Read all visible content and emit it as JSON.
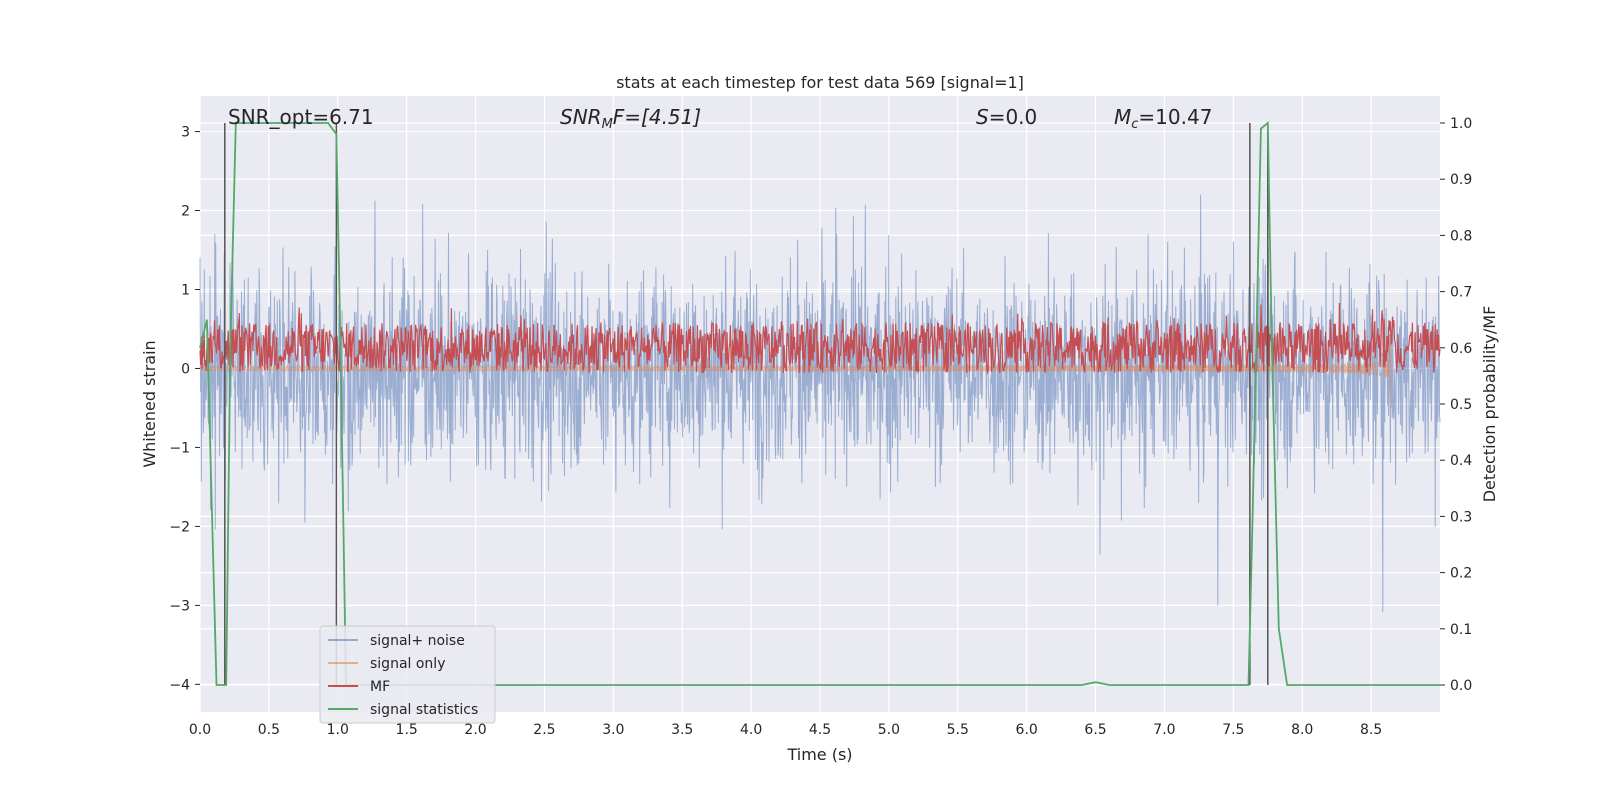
{
  "chart_data": {
    "type": "line",
    "title": "stats at each timestep for test data 569 [signal=1]",
    "xlabel": "Time (s)",
    "ylabel": "Whitened strain",
    "y2label": "Detection probability/MF",
    "xlim": [
      0.0,
      9.0
    ],
    "ylim": [
      -4.35,
      3.45
    ],
    "y2lim": [
      -0.048,
      1.048
    ],
    "xticks": [
      "0.0",
      "0.5",
      "1.0",
      "1.5",
      "2.0",
      "2.5",
      "3.0",
      "3.5",
      "4.0",
      "4.5",
      "5.0",
      "5.5",
      "6.0",
      "6.5",
      "7.0",
      "7.5",
      "8.0",
      "8.5"
    ],
    "xtick_values": [
      0.0,
      0.5,
      1.0,
      1.5,
      2.0,
      2.5,
      3.0,
      3.5,
      4.0,
      4.5,
      5.0,
      5.5,
      6.0,
      6.5,
      7.0,
      7.5,
      8.0,
      8.5
    ],
    "yticks": [
      "−4",
      "−3",
      "−2",
      "−1",
      "0",
      "1",
      "2",
      "3"
    ],
    "ytick_values": [
      -4,
      -3,
      -2,
      -1,
      0,
      1,
      2,
      3
    ],
    "y2ticks": [
      "0.0",
      "0.1",
      "0.2",
      "0.3",
      "0.4",
      "0.5",
      "0.6",
      "0.7",
      "0.8",
      "0.9",
      "1.0"
    ],
    "y2tick_values": [
      0.0,
      0.1,
      0.2,
      0.3,
      0.4,
      0.5,
      0.6,
      0.7,
      0.8,
      0.9,
      1.0
    ],
    "annotations": {
      "snr_opt": "SNR_opt=6.71",
      "snr_mf_prefix": "SNR",
      "snr_mf_sub": "M",
      "snr_mf_suffix": "F=[4.51]",
      "s_var": "S",
      "s_val": "=0.0",
      "mc_var": "M",
      "mc_sub": "c",
      "mc_val": "=10.47"
    },
    "series": [
      {
        "name": "signal+ noise",
        "color": "#4c72b0",
        "description": "whitened noisy strain, amplitude roughly -3 to 3 across full duration"
      },
      {
        "name": "signal only",
        "color": "#dd8452",
        "description": "chirp signal growing in amplitude until merger at ~8.65 s"
      },
      {
        "name": "MF",
        "color": "#c44e52",
        "description": "matched-filter output on right axis, mostly 0.55-0.67, peak ~0.68 near 8.6 s"
      },
      {
        "name": "signal statistics",
        "color": "#55a868",
        "x": [
          0.0,
          0.05,
          0.12,
          0.19,
          0.22,
          0.26,
          0.3,
          0.5,
          0.7,
          0.93,
          0.99,
          1.02,
          1.06,
          1.1,
          1.4,
          2.0,
          3.0,
          4.0,
          5.0,
          6.0,
          6.4,
          6.5,
          6.6,
          7.0,
          7.5,
          7.61,
          7.64,
          7.7,
          7.75,
          7.78,
          7.83,
          7.89,
          7.95,
          8.5,
          9.0
        ],
        "y": [
          0.6,
          0.65,
          0.0,
          0.0,
          0.6,
          1.0,
          1.0,
          1.0,
          1.0,
          1.0,
          0.98,
          0.6,
          0.0,
          0.0,
          0.0,
          0.0,
          0.0,
          0.0,
          0.0,
          0.0,
          0.0,
          0.005,
          0.0,
          0.0,
          0.0,
          0.0,
          0.3,
          0.99,
          1.0,
          0.6,
          0.1,
          0.0,
          0.0,
          0.0,
          0.0
        ]
      }
    ],
    "vlines": [
      0.18,
      0.99,
      7.62,
      7.75
    ],
    "legend_position": "lower-left",
    "grid": true
  }
}
